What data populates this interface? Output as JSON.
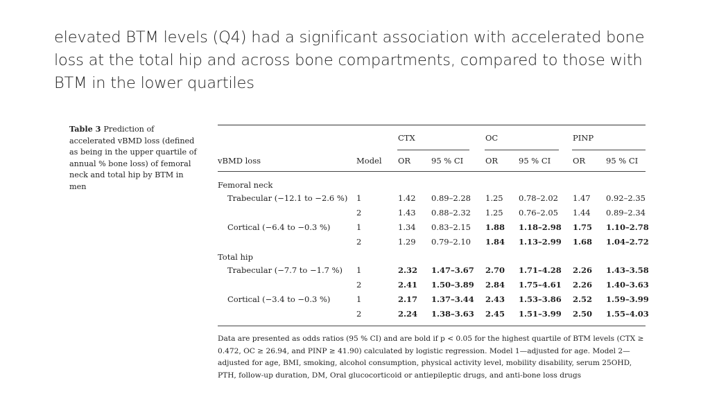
{
  "slide": {
    "title": "elevated BTM levels (Q4) had a significant association with accelerated bone loss at the total hip and across bone compartments, compared to those with BTM in the lower quartiles"
  },
  "table": {
    "caption_label": "Table 3",
    "caption_text": "Prediction of accelerated vBMD loss (defined as being in the upper quartile of annual % bone loss) of femoral neck and total hip by BTM in men",
    "group_headers": [
      "CTX",
      "OC",
      "PINP"
    ],
    "col_headers": [
      "vBMD loss",
      "Model",
      "OR",
      "95 % CI",
      "OR",
      "95 % CI",
      "OR",
      "95 % CI"
    ],
    "section_femoral": "Femoral neck",
    "section_hip": "Total hip",
    "rows": [
      {
        "label": "Trabecular (−12.1 to −2.6 %)",
        "model": "1",
        "vals": [
          "1.42",
          "0.89–2.28",
          "1.25",
          "0.78–2.02",
          "1.47",
          "0.92–2.35"
        ],
        "bold": [
          false,
          false,
          false,
          false,
          false,
          false
        ]
      },
      {
        "label": "",
        "model": "2",
        "vals": [
          "1.43",
          "0.88–2.32",
          "1.25",
          "0.76–2.05",
          "1.44",
          "0.89–2.34"
        ],
        "bold": [
          false,
          false,
          false,
          false,
          false,
          false
        ]
      },
      {
        "label": "Cortical (−6.4 to −0.3 %)",
        "model": "1",
        "vals": [
          "1.34",
          "0.83–2.15",
          "1.88",
          "1.18–2.98",
          "1.75",
          "1.10–2.78"
        ],
        "bold": [
          false,
          false,
          true,
          true,
          true,
          true
        ]
      },
      {
        "label": "",
        "model": "2",
        "vals": [
          "1.29",
          "0.79–2.10",
          "1.84",
          "1.13–2.99",
          "1.68",
          "1.04–2.72"
        ],
        "bold": [
          false,
          false,
          true,
          true,
          true,
          true
        ]
      },
      {
        "label": "Trabecular (−7.7 to −1.7 %)",
        "model": "1",
        "vals": [
          "2.32",
          "1.47–3.67",
          "2.70",
          "1.71–4.28",
          "2.26",
          "1.43–3.58"
        ],
        "bold": [
          true,
          true,
          true,
          true,
          true,
          true
        ]
      },
      {
        "label": "",
        "model": "2",
        "vals": [
          "2.41",
          "1.50–3.89",
          "2.84",
          "1.75–4.61",
          "2.26",
          "1.40–3.63"
        ],
        "bold": [
          true,
          true,
          true,
          true,
          true,
          true
        ]
      },
      {
        "label": "Cortical (−3.4 to −0.3 %)",
        "model": "1",
        "vals": [
          "2.17",
          "1.37–3.44",
          "2.43",
          "1.53–3.86",
          "2.52",
          "1.59–3.99"
        ],
        "bold": [
          true,
          true,
          true,
          true,
          true,
          true
        ]
      },
      {
        "label": "",
        "model": "2",
        "vals": [
          "2.24",
          "1.38–3.63",
          "2.45",
          "1.51–3.99",
          "2.50",
          "1.55–4.03"
        ],
        "bold": [
          true,
          true,
          true,
          true,
          true,
          true
        ]
      }
    ],
    "footnote": "Data are presented as odds ratios (95 % CI) and are bold if p < 0.05 for the highest quartile of BTM levels (CTX ≥ 0.472, OC ≥ 26.94, and PINP ≥ 41.90) calculated by logistic regression. Model 1—adjusted for age. Model 2—adjusted for age, BMI, smoking, alcohol consumption, physical activity level, mobility disability, serum 25OHD, PTH, follow-up duration, DM, Oral glucocorticoid or antiepileptic drugs, and anti-bone loss drugs"
  }
}
